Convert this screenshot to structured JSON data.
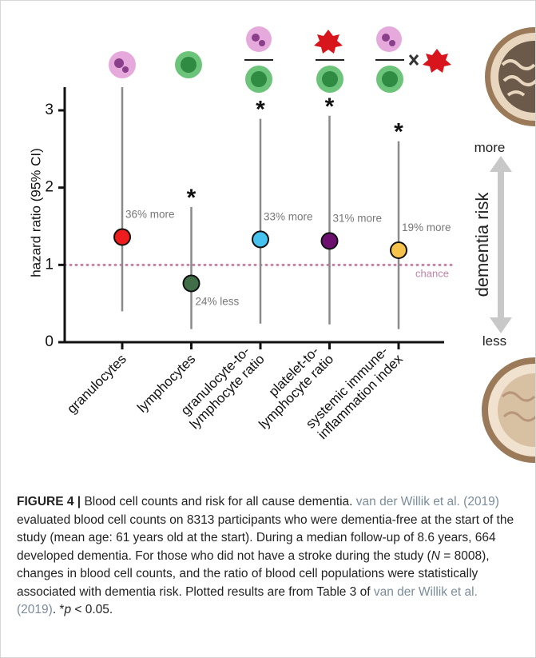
{
  "chart_data": {
    "type": "errorbar",
    "y_label": "hazard ratio (95% CI)",
    "categories": [
      [
        "granulocytes"
      ],
      [
        "lymphocytes"
      ],
      [
        "granulocyte-to-",
        "lymphocyte ratio"
      ],
      [
        "platelet-to-",
        "lymphocyte ratio"
      ],
      [
        "systemic immune-",
        "inflammation index"
      ]
    ],
    "values": [
      1.36,
      0.76,
      1.33,
      1.31,
      1.19
    ],
    "lower": [
      0.4,
      0.17,
      0.24,
      0.23,
      0.17
    ],
    "upper": [
      3.3,
      1.75,
      2.89,
      2.93,
      2.6
    ],
    "colors": [
      "#ee1c1c",
      "#3f6e48",
      "#45c3ee",
      "#6c0f6e",
      "#f5c24c"
    ],
    "annotations": [
      "36% more",
      "24% less",
      "33% more",
      "31% more",
      "19% more"
    ],
    "markers": [
      null,
      "*",
      "*",
      "*",
      "*"
    ],
    "reference_line": {
      "value": 1,
      "label": "chance",
      "color": "#c283a6"
    },
    "ylim": [
      0,
      3.3
    ],
    "yticks": [
      0,
      1,
      2,
      3
    ],
    "risk_scale": {
      "title": "dementia risk",
      "top": "more",
      "bottom": "less"
    }
  },
  "caption": {
    "label": "FIGURE 4 |",
    "parts": [
      {
        "text": " Blood cell counts and risk for all cause dementia. ",
        "style": "plain"
      },
      {
        "text": "van der Willik et al. (2019)",
        "style": "link"
      },
      {
        "text": " evaluated blood cell counts on 8313 participants who were dementia-free at the start of the study (mean age: 61 years old at the start). During a median follow-up of 8.6 years, 664 developed dementia. For those who did not have a stroke during the study (",
        "style": "plain"
      },
      {
        "text": "N",
        "style": "italic"
      },
      {
        "text": " = 8008), changes in blood cell counts, and the ratio of blood cell populations were statistically associated with dementia risk. Plotted results are from Table 3 of ",
        "style": "plain"
      },
      {
        "text": "van der Willik et al. (2019)",
        "style": "link"
      },
      {
        "text": ". *",
        "style": "plain"
      },
      {
        "text": "p",
        "style": "italic"
      },
      {
        "text": " < 0.05.",
        "style": "plain"
      }
    ]
  }
}
